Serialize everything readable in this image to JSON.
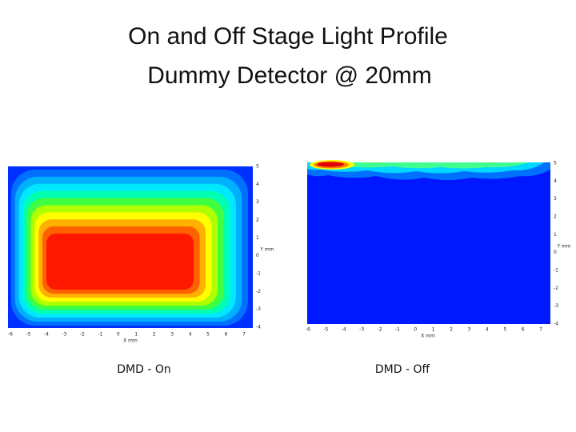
{
  "title": [
    "On and Off Stage Light Profile",
    "Dummy Detector @ 20mm"
  ],
  "panels": [
    {
      "caption": "DMD - On",
      "x_label": "X mm",
      "y_label": "Y mm",
      "x_ticks": [
        -6,
        -5,
        -4,
        -3,
        -2,
        -1,
        0,
        1,
        2,
        3,
        4,
        5,
        6,
        7
      ],
      "y_ticks": [
        5,
        4,
        3,
        2,
        1,
        0,
        -1,
        -2,
        -3,
        -4
      ]
    },
    {
      "caption": "DMD - Off",
      "x_label": "X mm",
      "y_label": "Y mm",
      "x_ticks": [
        -6,
        -5,
        -4,
        -3,
        -2,
        -1,
        0,
        1,
        2,
        3,
        4,
        5,
        6,
        7
      ],
      "y_ticks": [
        5,
        4,
        3,
        2,
        1,
        0,
        -1,
        -2,
        -3,
        -4
      ]
    }
  ]
}
